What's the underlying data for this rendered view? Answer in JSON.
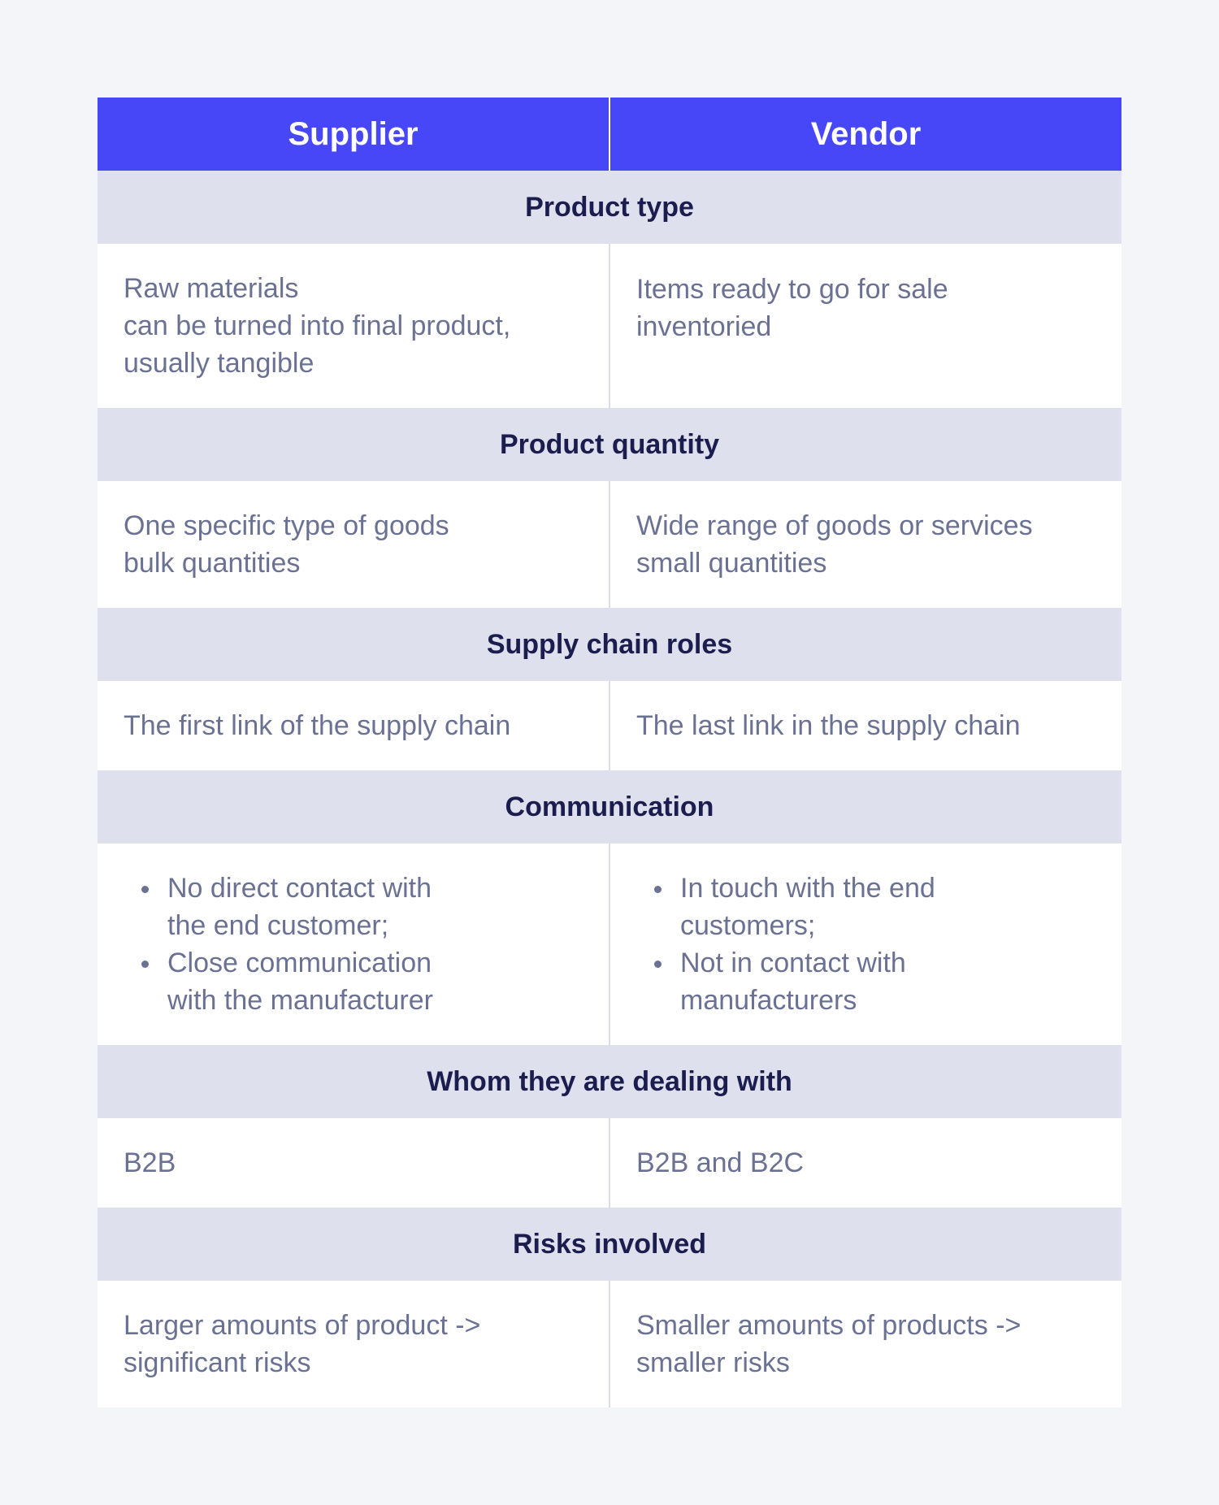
{
  "header": {
    "left": "Supplier",
    "right": "Vendor"
  },
  "sections": [
    {
      "title": "Product type",
      "left": [
        "Raw materials",
        "can be turned into final product,",
        "usually tangible"
      ],
      "right": [
        "Items ready to go for sale",
        "inventoried"
      ]
    },
    {
      "title": "Product quantity",
      "left": [
        "One specific type of goods",
        "bulk quantities"
      ],
      "right": [
        "Wide range of goods or services",
        "small quantities"
      ]
    },
    {
      "title": "Supply chain roles",
      "left": [
        "The first link of the supply chain"
      ],
      "right": [
        "The last link in the supply chain"
      ]
    },
    {
      "title": "Communication",
      "left_bullets": [
        [
          "No direct contact with",
          "the end customer;"
        ],
        [
          "Close communication",
          "with the manufacturer"
        ]
      ],
      "right_bullets": [
        [
          "In touch with the end",
          "customers;"
        ],
        [
          "Not in contact with",
          "manufacturers"
        ]
      ]
    },
    {
      "title": "Whom they are dealing with",
      "left": [
        "B2B"
      ],
      "right": [
        "B2B and B2C"
      ]
    },
    {
      "title": "Risks involved",
      "left": [
        "Larger amounts of product ->",
        "significant risks"
      ],
      "right": [
        "Smaller amounts of products ->",
        "smaller risks"
      ]
    }
  ],
  "colors": {
    "header_bg": "#4847f7",
    "section_bg": "#dfe0ed",
    "section_text": "#1c1d4f",
    "body_text": "#6b7192",
    "page_bg": "#f4f5f9"
  }
}
